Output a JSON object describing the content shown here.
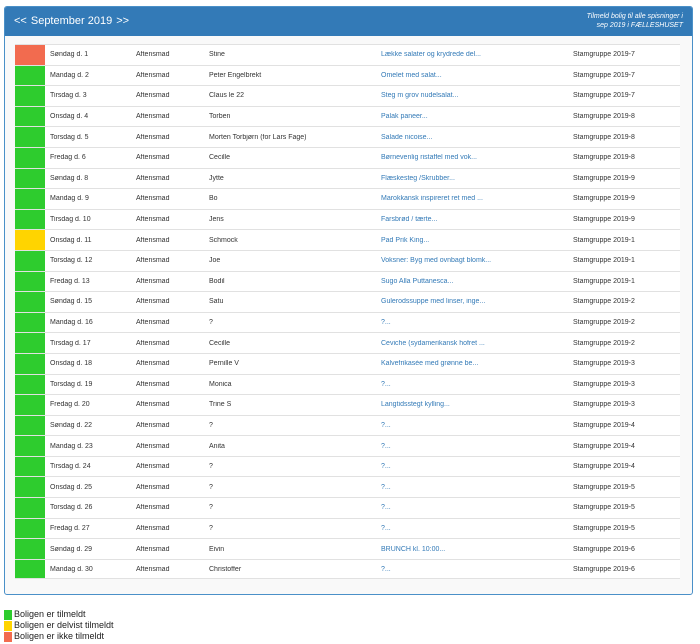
{
  "header": {
    "prev": "<<",
    "month": "September 2019",
    "next": ">>",
    "enroll_line1": "Tilmeld bolig til alle spisninger i",
    "enroll_line2": "sep 2019 i FÆLLESHUSET"
  },
  "colors": {
    "green": "#2ecc2e",
    "yellow": "#ffd400",
    "red": "#f26b4f",
    "header": "#337ab7"
  },
  "rows": [
    {
      "status": "red",
      "date": "Søndag d. 1",
      "type": "Aftensmad",
      "host": "Stine",
      "menu": "Lække salater og krydrede del...",
      "group": "Stamgruppe 2019-7"
    },
    {
      "status": "green",
      "date": "Mandag d. 2",
      "type": "Aftensmad",
      "host": "Peter Engelbrekt",
      "menu": "Omelet med salat...",
      "group": "Stamgruppe 2019-7"
    },
    {
      "status": "green",
      "date": "Tirsdag d. 3",
      "type": "Aftensmad",
      "host": "Claus le 22",
      "menu": "Steg m grov nudelsalat...",
      "group": "Stamgruppe 2019-7"
    },
    {
      "status": "green",
      "date": "Onsdag d. 4",
      "type": "Aftensmad",
      "host": "Torben",
      "menu": "Palak paneer...",
      "group": "Stamgruppe 2019-8"
    },
    {
      "status": "green",
      "date": "Torsdag d. 5",
      "type": "Aftensmad",
      "host": "Morten Torbjørn (for Lars Fage)",
      "menu": "Salade nicoise...",
      "group": "Stamgruppe 2019-8"
    },
    {
      "status": "green",
      "date": "Fredag d. 6",
      "type": "Aftensmad",
      "host": "Cecille",
      "menu": "Børnevenlig ristaffel med vok...",
      "group": "Stamgruppe 2019-8"
    },
    {
      "status": "green",
      "date": "Søndag d. 8",
      "type": "Aftensmad",
      "host": "Jytte",
      "menu": "Flæskesteg /Skrubber...",
      "group": "Stamgruppe 2019-9"
    },
    {
      "status": "green",
      "date": "Mandag d. 9",
      "type": "Aftensmad",
      "host": "Bo",
      "menu": "Marokkansk inspireret ret med ...",
      "group": "Stamgruppe 2019-9"
    },
    {
      "status": "green",
      "date": "Tirsdag d. 10",
      "type": "Aftensmad",
      "host": "Jens",
      "menu": "Farsbrød / tærte...",
      "group": "Stamgruppe 2019-9"
    },
    {
      "status": "yellow",
      "date": "Onsdag d. 11",
      "type": "Aftensmad",
      "host": "Schmock",
      "menu": "Pad Prik King...",
      "group": "Stamgruppe 2019-1"
    },
    {
      "status": "green",
      "date": "Torsdag d. 12",
      "type": "Aftensmad",
      "host": "Joe",
      "menu": "Voksner: Byg med ovnbagt blomk...",
      "group": "Stamgruppe 2019-1"
    },
    {
      "status": "green",
      "date": "Fredag d. 13",
      "type": "Aftensmad",
      "host": "Bodil",
      "menu": "Sugo Alla Puttanesca...",
      "group": "Stamgruppe 2019-1"
    },
    {
      "status": "green",
      "date": "Søndag d. 15",
      "type": "Aftensmad",
      "host": "Satu",
      "menu": "Gulerodssuppe med linser, inge...",
      "group": "Stamgruppe 2019-2"
    },
    {
      "status": "green",
      "date": "Mandag d. 16",
      "type": "Aftensmad",
      "host": "?",
      "menu": "?...",
      "group": "Stamgruppe 2019-2"
    },
    {
      "status": "green",
      "date": "Tirsdag d. 17",
      "type": "Aftensmad",
      "host": "Cecille",
      "menu": "Ceviche (sydamerikansk hofret ...",
      "group": "Stamgruppe 2019-2"
    },
    {
      "status": "green",
      "date": "Onsdag d. 18",
      "type": "Aftensmad",
      "host": "Pernille V",
      "menu": "Kalvefrikasée med grønne be...",
      "group": "Stamgruppe 2019-3"
    },
    {
      "status": "green",
      "date": "Torsdag d. 19",
      "type": "Aftensmad",
      "host": "Monica",
      "menu": "?...",
      "group": "Stamgruppe 2019-3"
    },
    {
      "status": "green",
      "date": "Fredag d. 20",
      "type": "Aftensmad",
      "host": "Trine S",
      "menu": "Langtidsstegt kylling...",
      "group": "Stamgruppe 2019-3"
    },
    {
      "status": "green",
      "date": "Søndag d. 22",
      "type": "Aftensmad",
      "host": "?",
      "menu": "?...",
      "group": "Stamgruppe 2019-4"
    },
    {
      "status": "green",
      "date": "Mandag d. 23",
      "type": "Aftensmad",
      "host": "Anita",
      "menu": "?...",
      "group": "Stamgruppe 2019-4"
    },
    {
      "status": "green",
      "date": "Tirsdag d. 24",
      "type": "Aftensmad",
      "host": "?",
      "menu": "?...",
      "group": "Stamgruppe 2019-4"
    },
    {
      "status": "green",
      "date": "Onsdag d. 25",
      "type": "Aftensmad",
      "host": "?",
      "menu": "?...",
      "group": "Stamgruppe 2019-5"
    },
    {
      "status": "green",
      "date": "Torsdag d. 26",
      "type": "Aftensmad",
      "host": "?",
      "menu": "?...",
      "group": "Stamgruppe 2019-5"
    },
    {
      "status": "green",
      "date": "Fredag d. 27",
      "type": "Aftensmad",
      "host": "?",
      "menu": "?...",
      "group": "Stamgruppe 2019-5"
    },
    {
      "status": "green",
      "date": "Søndag d. 29",
      "type": "Aftensmad",
      "host": "Eivin",
      "menu": "BRUNCH kl. 10:00...",
      "group": "Stamgruppe 2019-6"
    },
    {
      "status": "green",
      "date": "Mandag d. 30",
      "type": "Aftensmad",
      "host": "Christoffer",
      "menu": "?...",
      "group": "Stamgruppe 2019-6"
    }
  ],
  "legend": [
    {
      "status": "green",
      "label": "Boligen er tilmeldt"
    },
    {
      "status": "yellow",
      "label": "Boligen er delvist tilmeldt"
    },
    {
      "status": "red",
      "label": "Boligen er ikke tilmeldt"
    }
  ]
}
